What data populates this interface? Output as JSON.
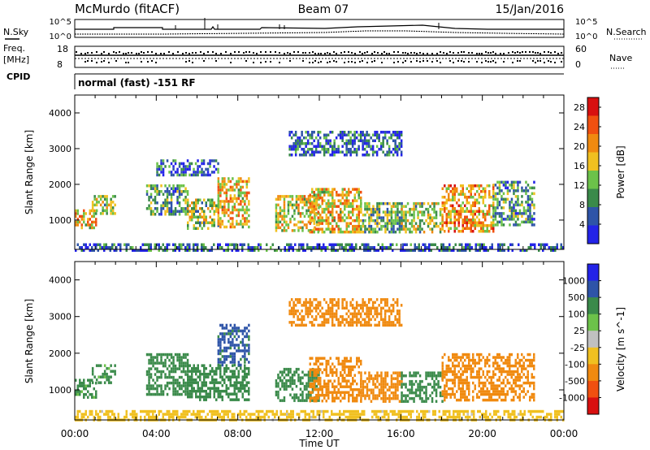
{
  "header": {
    "station": "McMurdo (fitACF)",
    "beam": "Beam 07",
    "date": "15/Jan/2016"
  },
  "status_panels": {
    "nsky_label": "N.Sky",
    "nsearch_label": "N.Search",
    "noise_tick_top": "10^5",
    "noise_tick_bottom": "10^0",
    "freq_label_1": "Freq.",
    "freq_label_2": "[MHz]",
    "freq_ticks": [
      "18",
      "8"
    ],
    "nave_label": "Nave",
    "nave_ticks": [
      "60",
      "0"
    ],
    "cpid_label": "CPID",
    "cpid_text": "normal (fast) -151 RF"
  },
  "colors": {
    "power_scale": [
      "#2323e8",
      "#2e54a8",
      "#3a8a4a",
      "#6cc24a",
      "#f0c020",
      "#f08a10",
      "#f05010",
      "#d81010"
    ],
    "velocity_scale": [
      "#2323e8",
      "#2e54a8",
      "#3a8a4a",
      "#6cc24a",
      "#c0c0c0",
      "#f0c020",
      "#f08a10",
      "#f05010",
      "#d81010"
    ]
  },
  "chart_data": [
    {
      "type": "heatmap",
      "title": "",
      "xlabel": "Time UT",
      "ylabel": "Slant Range [km]",
      "x_ticks": [
        "00:00",
        "04:00",
        "08:00",
        "12:00",
        "16:00",
        "20:00",
        "00:00"
      ],
      "y_ticks": [
        1000,
        2000,
        3000,
        4000
      ],
      "ylim": [
        180,
        4500
      ],
      "xlim": [
        "00:00",
        "24:00"
      ],
      "colorbar": {
        "label": "Power [dB]",
        "ticks": [
          "4",
          "8",
          "12",
          "16",
          "20",
          "24",
          "28"
        ],
        "range": [
          0,
          30
        ]
      },
      "regions": [
        {
          "t0": "00:00",
          "t1": "01:00",
          "r0": 800,
          "r1": 1300,
          "level": 18
        },
        {
          "t0": "00:50",
          "t1": "02:00",
          "r0": 1200,
          "r1": 1700,
          "level": 14
        },
        {
          "t0": "03:30",
          "t1": "05:30",
          "r0": 1200,
          "r1": 2000,
          "level": 10
        },
        {
          "t0": "05:30",
          "t1": "07:00",
          "r0": 800,
          "r1": 1600,
          "level": 14
        },
        {
          "t0": "07:00",
          "t1": "08:30",
          "r0": 800,
          "r1": 2200,
          "level": 18
        },
        {
          "t0": "09:50",
          "t1": "12:00",
          "r0": 700,
          "r1": 1700,
          "level": 16
        },
        {
          "t0": "11:30",
          "t1": "14:00",
          "r0": 700,
          "r1": 1900,
          "level": 18
        },
        {
          "t0": "14:00",
          "t1": "16:00",
          "r0": 700,
          "r1": 1500,
          "level": 12
        },
        {
          "t0": "16:00",
          "t1": "18:00",
          "r0": 700,
          "r1": 1500,
          "level": 14
        },
        {
          "t0": "18:00",
          "t1": "20:30",
          "r0": 700,
          "r1": 2000,
          "level": 20
        },
        {
          "t0": "20:30",
          "t1": "22:30",
          "r0": 900,
          "r1": 2100,
          "level": 10
        },
        {
          "t0": "10:30",
          "t1": "16:00",
          "r0": 2800,
          "r1": 3500,
          "level": 6
        },
        {
          "t0": "04:00",
          "t1": "07:00",
          "r0": 2300,
          "r1": 2700,
          "level": 6
        },
        {
          "t0": "00:00",
          "t1": "24:00",
          "r0": 180,
          "r1": 350,
          "level": 6
        }
      ]
    },
    {
      "type": "heatmap",
      "title": "",
      "xlabel": "Time UT",
      "ylabel": "Slant Range [km]",
      "x_ticks": [
        "00:00",
        "04:00",
        "08:00",
        "12:00",
        "16:00",
        "20:00",
        "00:00"
      ],
      "y_ticks": [
        1000,
        2000,
        3000,
        4000
      ],
      "ylim": [
        180,
        4500
      ],
      "xlim": [
        "00:00",
        "24:00"
      ],
      "colorbar": {
        "label": "Velocity [m s^-1]",
        "ticks": [
          "1000",
          "500",
          "100",
          "25",
          "-25",
          "-100",
          "-500",
          "-1000"
        ]
      },
      "regions": [
        {
          "t0": "00:00",
          "t1": "01:00",
          "r0": 800,
          "r1": 1300,
          "velocity": 150
        },
        {
          "t0": "00:50",
          "t1": "02:00",
          "r0": 1200,
          "r1": 1700,
          "velocity": 150
        },
        {
          "t0": "03:30",
          "t1": "05:30",
          "r0": 900,
          "r1": 2000,
          "velocity": 200
        },
        {
          "t0": "05:30",
          "t1": "08:30",
          "r0": 700,
          "r1": 1700,
          "velocity": 350
        },
        {
          "t0": "07:00",
          "t1": "08:30",
          "r0": 1700,
          "r1": 2800,
          "velocity": 700
        },
        {
          "t0": "09:50",
          "t1": "12:00",
          "r0": 700,
          "r1": 1600,
          "velocity": 350
        },
        {
          "t0": "11:30",
          "t1": "14:00",
          "r0": 700,
          "r1": 1900,
          "velocity": -300
        },
        {
          "t0": "14:00",
          "t1": "16:00",
          "r0": 700,
          "r1": 1500,
          "velocity": -200
        },
        {
          "t0": "16:00",
          "t1": "18:00",
          "r0": 700,
          "r1": 1500,
          "velocity": 200
        },
        {
          "t0": "18:00",
          "t1": "22:30",
          "r0": 700,
          "r1": 2000,
          "velocity": -300
        },
        {
          "t0": "10:30",
          "t1": "16:00",
          "r0": 2800,
          "r1": 3500,
          "velocity": -200
        },
        {
          "t0": "00:00",
          "t1": "24:00",
          "r0": 180,
          "r1": 450,
          "velocity": -40
        }
      ]
    }
  ]
}
